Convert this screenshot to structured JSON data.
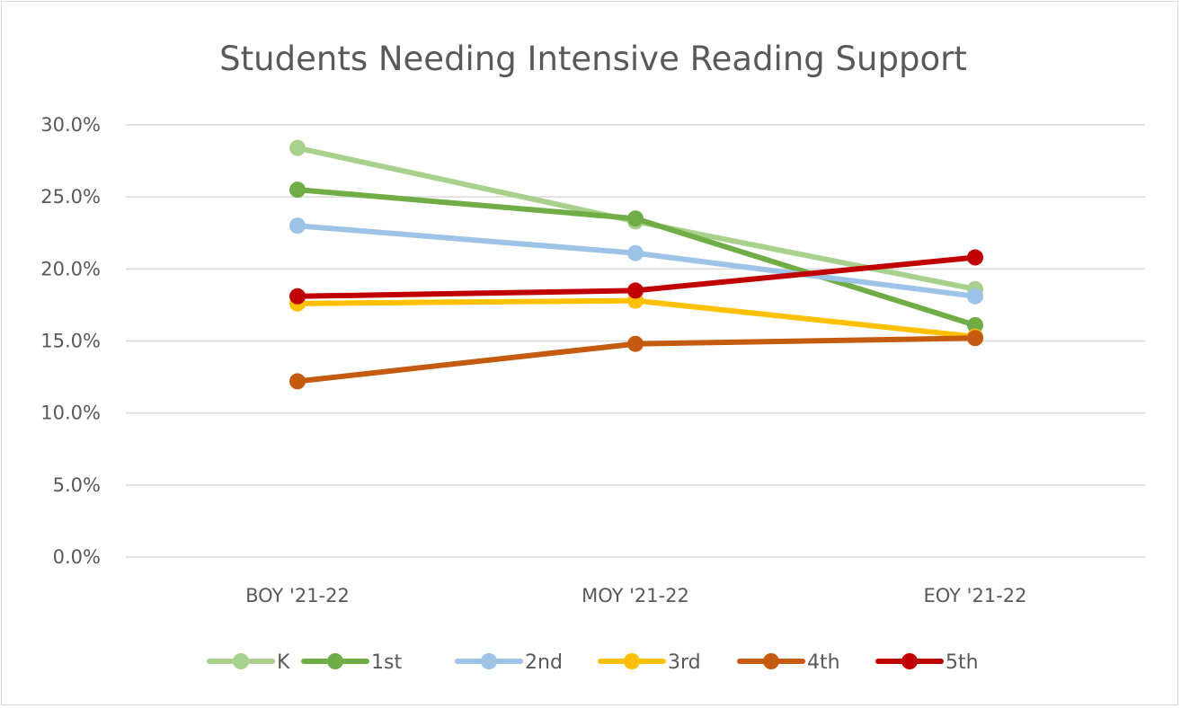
{
  "chart_data": {
    "type": "line",
    "title": "Students Needing Intensive Reading Support",
    "xlabel": "",
    "ylabel": "",
    "categories": [
      "BOY '21-22",
      "MOY '21-22",
      "EOY '21-22"
    ],
    "ylim": [
      0,
      30
    ],
    "ytick_values": [
      0,
      5,
      10,
      15,
      20,
      25,
      30
    ],
    "ytick_labels": [
      "0.0%",
      "5.0%",
      "10.0%",
      "15.0%",
      "20.0%",
      "25.0%",
      "30.0%"
    ],
    "grid": true,
    "legend_position": "bottom",
    "series": [
      {
        "name": "K",
        "color": "#a9d18e",
        "values": [
          28.4,
          23.3,
          18.6
        ]
      },
      {
        "name": "1st",
        "color": "#70ad47",
        "values": [
          25.5,
          23.5,
          16.1
        ]
      },
      {
        "name": "2nd",
        "color": "#9dc3e6",
        "values": [
          23.0,
          21.1,
          18.1
        ]
      },
      {
        "name": "3rd",
        "color": "#ffc000",
        "values": [
          17.6,
          17.8,
          15.3
        ]
      },
      {
        "name": "4th",
        "color": "#c55a11",
        "values": [
          12.2,
          14.8,
          15.2
        ]
      },
      {
        "name": "5th",
        "color": "#c00000",
        "values": [
          18.1,
          18.5,
          20.8
        ]
      }
    ]
  }
}
